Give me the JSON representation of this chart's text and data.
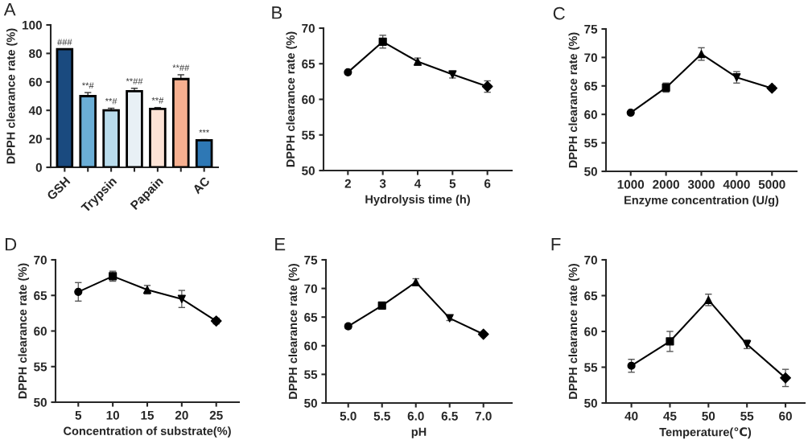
{
  "chart_data": [
    {
      "type": "bar",
      "title": "A",
      "ylabel": "DPPH clearance rate (%)",
      "categories": [
        "GSH",
        null,
        "Trypsin",
        null,
        "Papain",
        null,
        "AC"
      ],
      "values": [
        83,
        50,
        40,
        53.5,
        41,
        62,
        19
      ],
      "errors": [
        null,
        2.5,
        1.5,
        2,
        1,
        3,
        0.5
      ],
      "colors": [
        "#1a4a7f",
        "#6baed6",
        "#b9dcec",
        "#e8f0f5",
        "#fde3d6",
        "#f7b090",
        "#2e78b5"
      ],
      "value_labels": [
        "###",
        "**#",
        "**#",
        "**##",
        "**#",
        "**##",
        "***"
      ],
      "ylim": [
        0,
        100
      ],
      "yticks": [
        0,
        20,
        40,
        60,
        80,
        100
      ],
      "grid": false,
      "legend": false
    },
    {
      "type": "line",
      "title": "B",
      "xlabel": "Hydrolysis time (h)",
      "ylabel": "DPPH clearance rate (%)",
      "x": [
        2,
        3,
        4,
        5,
        6
      ],
      "series": [
        {
          "color": "#000000",
          "values": [
            63.8,
            68.1,
            65.3,
            63.5,
            61.8
          ],
          "errors": [
            0.2,
            0.9,
            0.5,
            0.5,
            0.8
          ],
          "marker": [
            "circle",
            "square",
            "triangle",
            "triangle_down",
            "diamond"
          ]
        }
      ],
      "xlim": [
        1.3,
        6.7
      ],
      "xticks": [
        2,
        3,
        4,
        5,
        6
      ],
      "ylim": [
        50,
        70
      ],
      "yticks": [
        50,
        55,
        60,
        65,
        70
      ],
      "grid": false,
      "legend": false
    },
    {
      "type": "line",
      "title": "C",
      "xlabel": "Enzyme concentration (U/g)",
      "ylabel": "DPPH clearance rate (%)",
      "x": [
        1000,
        2000,
        3000,
        4000,
        5000
      ],
      "series": [
        {
          "color": "#000000",
          "values": [
            60.3,
            64.7,
            70.6,
            66.5,
            64.6
          ],
          "errors": [
            0.2,
            0.8,
            1.1,
            1.0,
            0.4
          ],
          "marker": [
            "circle",
            "square",
            "triangle",
            "triangle_down",
            "diamond"
          ]
        }
      ],
      "xlim": [
        300,
        5700
      ],
      "xticks": [
        1000,
        2000,
        3000,
        4000,
        5000
      ],
      "ylim": [
        50,
        75
      ],
      "yticks": [
        50,
        55,
        60,
        65,
        70,
        75
      ],
      "grid": false,
      "legend": false
    },
    {
      "type": "line",
      "title": "D",
      "xlabel": "Concentration of substrate(%)",
      "ylabel": "DPPH clearance rate (%)",
      "x": [
        5,
        10,
        15,
        20,
        25
      ],
      "series": [
        {
          "color": "#000000",
          "values": [
            65.5,
            67.7,
            65.8,
            64.5,
            61.4
          ],
          "errors": [
            1.3,
            0.7,
            0.6,
            1.2,
            0.4
          ],
          "marker": [
            "circle",
            "square",
            "triangle",
            "triangle_down",
            "diamond"
          ]
        }
      ],
      "xlim": [
        1.7,
        28.3
      ],
      "xticks": [
        5,
        10,
        15,
        20,
        25
      ],
      "ylim": [
        50,
        70
      ],
      "yticks": [
        50,
        55,
        60,
        65,
        70
      ],
      "grid": false,
      "legend": false
    },
    {
      "type": "line",
      "title": "E",
      "xlabel": "pH",
      "ylabel": "DPPH clearance rate (%)",
      "x": [
        5.0,
        5.5,
        6.0,
        6.5,
        7.0
      ],
      "series": [
        {
          "color": "#000000",
          "values": [
            63.4,
            67.0,
            71.1,
            64.8,
            62.0
          ],
          "errors": [
            0.4,
            0.2,
            0.6,
            0.4,
            0.2
          ],
          "marker": [
            "circle",
            "square",
            "triangle",
            "triangle_down",
            "diamond"
          ]
        }
      ],
      "xlim": [
        4.67,
        7.42
      ],
      "xticks": [
        {
          "value": 5.0,
          "label": "5.0"
        },
        {
          "value": 5.5,
          "label": "5.5"
        },
        {
          "value": 6.0,
          "label": "6.0"
        },
        {
          "value": 6.5,
          "label": "6.5"
        },
        {
          "value": 7.0,
          "label": "7.0"
        }
      ],
      "ylim": [
        50,
        75
      ],
      "yticks": [
        50,
        55,
        60,
        65,
        70,
        75
      ],
      "grid": false,
      "legend": false
    },
    {
      "type": "line",
      "title": "F",
      "xlabel": "Temperature(℃)",
      "ylabel": "DPPH clearance rate (%)",
      "x": [
        40,
        45,
        50,
        55,
        60
      ],
      "series": [
        {
          "color": "#000000",
          "values": [
            55.2,
            58.6,
            64.4,
            58.2,
            53.5
          ],
          "errors": [
            0.9,
            1.4,
            0.8,
            0.6,
            1.2
          ],
          "marker": [
            "circle",
            "square",
            "triangle",
            "triangle_down",
            "diamond"
          ]
        }
      ],
      "xlim": [
        36.7,
        62.5
      ],
      "xticks": [
        40,
        45,
        50,
        55,
        60
      ],
      "ylim": [
        50,
        70
      ],
      "yticks": [
        50,
        55,
        60,
        65,
        70
      ],
      "grid": false,
      "legend": false
    }
  ]
}
